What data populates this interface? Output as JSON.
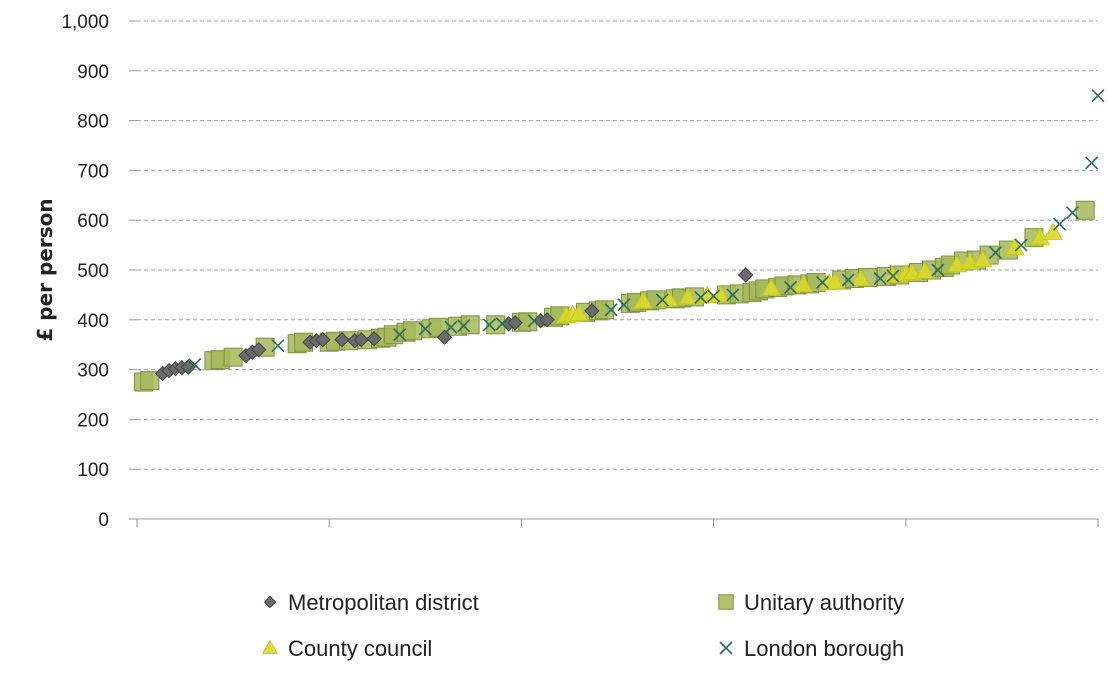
{
  "chart_data": {
    "type": "scatter",
    "ylabel": "£ per person",
    "xlabel": "",
    "ylim": [
      0,
      1000
    ],
    "xlim": [
      0,
      150
    ],
    "yticks": [
      0,
      100,
      200,
      300,
      400,
      500,
      600,
      700,
      800,
      900,
      1000
    ],
    "ytick_labels": [
      "0",
      "100",
      "200",
      "300",
      "400",
      "500",
      "600",
      "700",
      "800",
      "900",
      "1,000"
    ],
    "xticks": [
      0,
      30,
      60,
      90,
      120,
      150
    ],
    "grid": "horizontal-dashed",
    "legend_placement": "bottom",
    "series": [
      {
        "name": "Metropolitan district",
        "marker": "diamond",
        "color": "#6b6b6b",
        "points": [
          [
            4,
            292
          ],
          [
            5,
            298
          ],
          [
            6,
            302
          ],
          [
            7,
            304
          ],
          [
            8,
            305
          ],
          [
            17,
            328
          ],
          [
            18,
            335
          ],
          [
            19,
            340
          ],
          [
            27,
            355
          ],
          [
            28,
            358
          ],
          [
            29,
            360
          ],
          [
            32,
            360
          ],
          [
            34,
            358
          ],
          [
            35,
            360
          ],
          [
            37,
            362
          ],
          [
            48,
            365
          ],
          [
            58,
            392
          ],
          [
            59,
            394
          ],
          [
            63,
            398
          ],
          [
            64,
            400
          ],
          [
            71,
            418
          ],
          [
            95,
            490
          ]
        ]
      },
      {
        "name": "Unitary authority",
        "marker": "square",
        "color": "#a5b85b",
        "points": [
          [
            1,
            275
          ],
          [
            2,
            278
          ],
          [
            12,
            318
          ],
          [
            13,
            320
          ],
          [
            15,
            325
          ],
          [
            20,
            345
          ],
          [
            25,
            352
          ],
          [
            26,
            355
          ],
          [
            30,
            355
          ],
          [
            31,
            357
          ],
          [
            33,
            358
          ],
          [
            36,
            360
          ],
          [
            38,
            363
          ],
          [
            39,
            365
          ],
          [
            40,
            370
          ],
          [
            42,
            375
          ],
          [
            43,
            378
          ],
          [
            46,
            382
          ],
          [
            47,
            385
          ],
          [
            50,
            387
          ],
          [
            52,
            390
          ],
          [
            56,
            390
          ],
          [
            60,
            395
          ],
          [
            61,
            396
          ],
          [
            65,
            405
          ],
          [
            66,
            408
          ],
          [
            70,
            415
          ],
          [
            72,
            418
          ],
          [
            73,
            420
          ],
          [
            77,
            433
          ],
          [
            78,
            435
          ],
          [
            80,
            438
          ],
          [
            81,
            440
          ],
          [
            84,
            442
          ],
          [
            85,
            444
          ],
          [
            87,
            446
          ],
          [
            92,
            450
          ],
          [
            94,
            452
          ],
          [
            96,
            455
          ],
          [
            97,
            458
          ],
          [
            98,
            462
          ],
          [
            100,
            465
          ],
          [
            101,
            468
          ],
          [
            103,
            470
          ],
          [
            105,
            472
          ],
          [
            106,
            475
          ],
          [
            110,
            480
          ],
          [
            112,
            483
          ],
          [
            114,
            485
          ],
          [
            117,
            487
          ],
          [
            119,
            490
          ],
          [
            122,
            495
          ],
          [
            124,
            500
          ],
          [
            126,
            505
          ],
          [
            127,
            510
          ],
          [
            129,
            518
          ],
          [
            131,
            520
          ],
          [
            133,
            530
          ],
          [
            136,
            540
          ],
          [
            140,
            565
          ],
          [
            148,
            620
          ]
        ]
      },
      {
        "name": "County council",
        "marker": "triangle",
        "color": "#d8da2a",
        "points": [
          [
            67,
            408
          ],
          [
            68,
            410
          ],
          [
            69,
            412
          ],
          [
            79,
            437
          ],
          [
            83,
            441
          ],
          [
            86,
            445
          ],
          [
            89,
            448
          ],
          [
            91,
            450
          ],
          [
            99,
            463
          ],
          [
            104,
            470
          ],
          [
            108,
            474
          ],
          [
            109,
            476
          ],
          [
            113,
            482
          ],
          [
            118,
            488
          ],
          [
            120,
            492
          ],
          [
            121,
            494
          ],
          [
            123,
            497
          ],
          [
            128,
            510
          ],
          [
            130,
            515
          ],
          [
            132,
            520
          ],
          [
            137,
            545
          ],
          [
            141,
            565
          ],
          [
            143,
            575
          ]
        ]
      },
      {
        "name": "London borough",
        "marker": "x",
        "color": "#2e6b5b",
        "points": [
          [
            9,
            310
          ],
          [
            22,
            348
          ],
          [
            41,
            370
          ],
          [
            45,
            382
          ],
          [
            49,
            385
          ],
          [
            51,
            388
          ],
          [
            55,
            390
          ],
          [
            57,
            392
          ],
          [
            62,
            398
          ],
          [
            74,
            420
          ],
          [
            76,
            430
          ],
          [
            82,
            440
          ],
          [
            88,
            445
          ],
          [
            90,
            448
          ],
          [
            93,
            450
          ],
          [
            102,
            465
          ],
          [
            107,
            475
          ],
          [
            111,
            480
          ],
          [
            116,
            483
          ],
          [
            118,
            488
          ],
          [
            125,
            500
          ],
          [
            134,
            535
          ],
          [
            138,
            550
          ],
          [
            144,
            592
          ],
          [
            146,
            615
          ],
          [
            149,
            715
          ],
          [
            150,
            850
          ]
        ]
      }
    ]
  }
}
